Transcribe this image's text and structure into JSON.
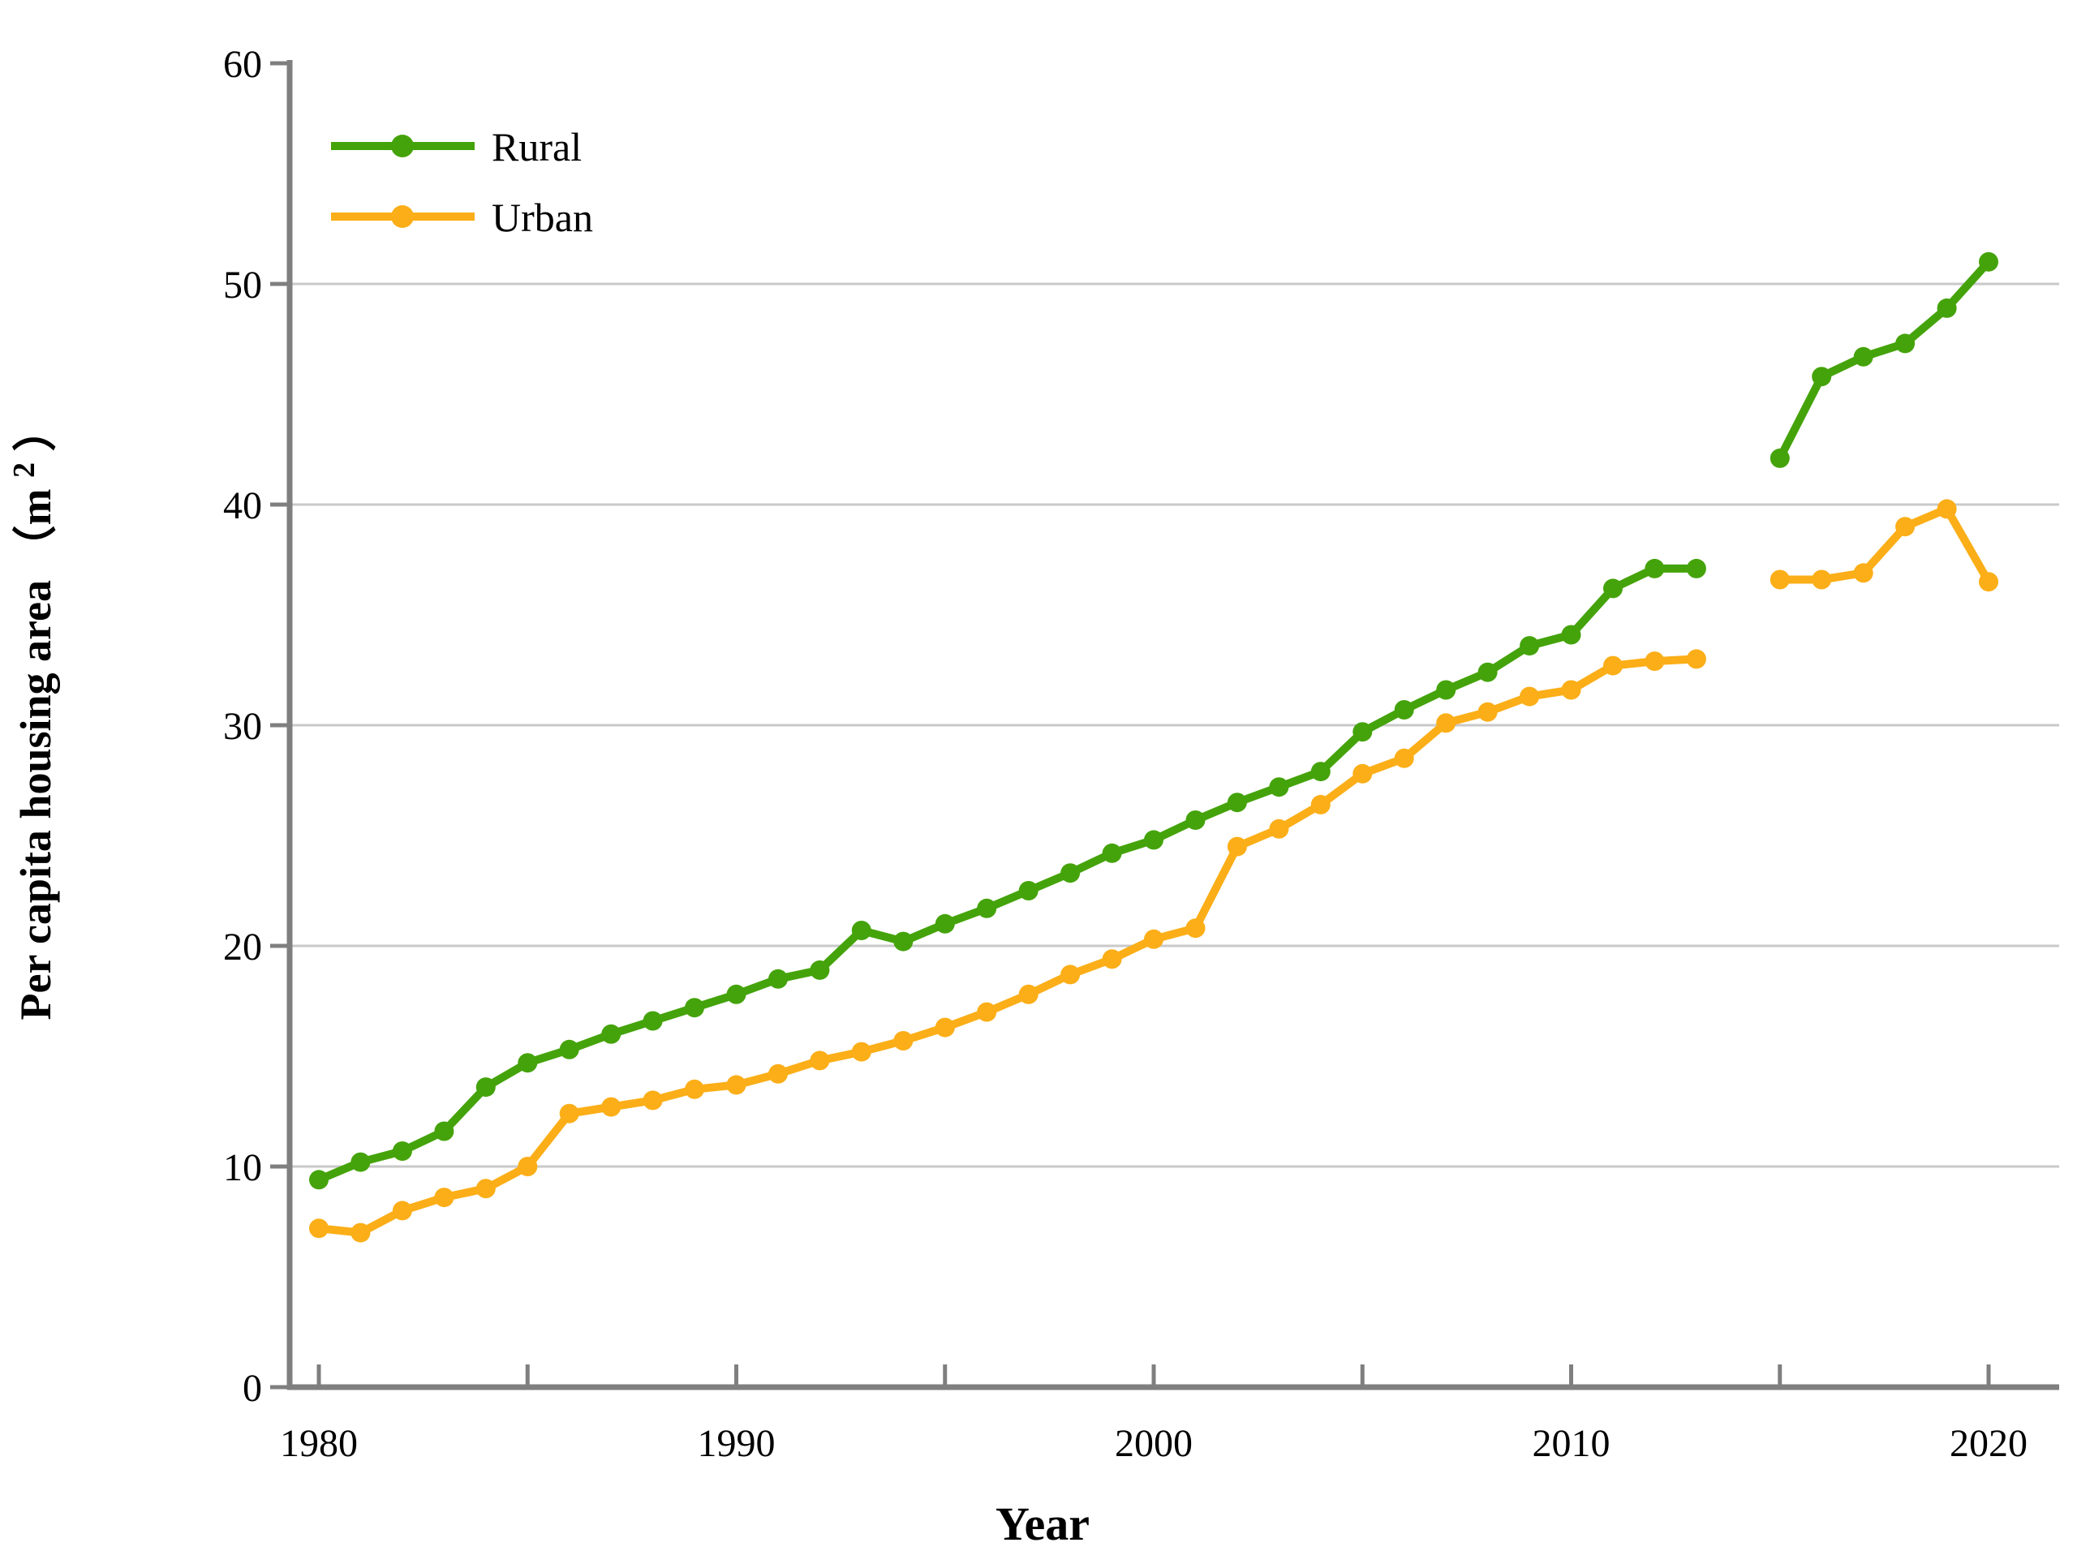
{
  "chart_data": {
    "type": "line",
    "title": "",
    "xlabel": "Year",
    "ylabel": "Per capita housing area （m2）",
    "ylabel_parts": {
      "main": "Per capita housing area （m",
      "sup": "2",
      "close": "）"
    },
    "xlim": [
      1979.3,
      2022
    ],
    "ylim": [
      0,
      60
    ],
    "y_ticks": [
      0,
      10,
      20,
      30,
      40,
      50,
      60
    ],
    "y_gridlines": [
      10,
      20,
      30,
      40,
      50
    ],
    "x_ticks_minor": [
      1980,
      1985,
      1990,
      1995,
      2000,
      2005,
      2010,
      2015,
      2020
    ],
    "x_tick_labels": [
      1980,
      1990,
      2000,
      2010,
      2020
    ],
    "grid": "horizontal",
    "legend_position": "upper-left-inside",
    "gap_note": "no data for 2014; lines broken between 2013 and 2015",
    "colors": {
      "rural": "#44a30a",
      "urban": "#fbae17",
      "axis": "#7f7f7f",
      "grid": "#c9c9c9",
      "text": "#000000"
    },
    "series": [
      {
        "name": "Rural",
        "color": "#44a30a",
        "points": [
          [
            1980,
            9.4
          ],
          [
            1981,
            10.2
          ],
          [
            1982,
            10.7
          ],
          [
            1983,
            11.6
          ],
          [
            1984,
            13.6
          ],
          [
            1985,
            14.7
          ],
          [
            1986,
            15.3
          ],
          [
            1987,
            16.0
          ],
          [
            1988,
            16.6
          ],
          [
            1989,
            17.2
          ],
          [
            1990,
            17.8
          ],
          [
            1991,
            18.5
          ],
          [
            1992,
            18.9
          ],
          [
            1993,
            20.7
          ],
          [
            1994,
            20.2
          ],
          [
            1995,
            21.0
          ],
          [
            1996,
            21.7
          ],
          [
            1997,
            22.5
          ],
          [
            1998,
            23.3
          ],
          [
            1999,
            24.2
          ],
          [
            2000,
            24.8
          ],
          [
            2001,
            25.7
          ],
          [
            2002,
            26.5
          ],
          [
            2003,
            27.2
          ],
          [
            2004,
            27.9
          ],
          [
            2005,
            29.7
          ],
          [
            2006,
            30.7
          ],
          [
            2007,
            31.6
          ],
          [
            2008,
            32.4
          ],
          [
            2009,
            33.6
          ],
          [
            2010,
            34.1
          ],
          [
            2011,
            36.2
          ],
          [
            2012,
            37.1
          ],
          [
            2013,
            37.1
          ],
          [
            2015,
            42.1
          ],
          [
            2016,
            45.8
          ],
          [
            2017,
            46.7
          ],
          [
            2018,
            47.3
          ],
          [
            2019,
            48.9
          ],
          [
            2020,
            51.0
          ]
        ]
      },
      {
        "name": "Urban",
        "color": "#fbae17",
        "points": [
          [
            1980,
            7.2
          ],
          [
            1981,
            7.0
          ],
          [
            1982,
            8.0
          ],
          [
            1983,
            8.6
          ],
          [
            1984,
            9.0
          ],
          [
            1985,
            10.0
          ],
          [
            1986,
            12.4
          ],
          [
            1987,
            12.7
          ],
          [
            1988,
            13.0
          ],
          [
            1989,
            13.5
          ],
          [
            1990,
            13.7
          ],
          [
            1991,
            14.2
          ],
          [
            1992,
            14.8
          ],
          [
            1993,
            15.2
          ],
          [
            1994,
            15.7
          ],
          [
            1995,
            16.3
          ],
          [
            1996,
            17.0
          ],
          [
            1997,
            17.8
          ],
          [
            1998,
            18.7
          ],
          [
            1999,
            19.4
          ],
          [
            2000,
            20.3
          ],
          [
            2001,
            20.8
          ],
          [
            2002,
            24.5
          ],
          [
            2003,
            25.3
          ],
          [
            2004,
            26.4
          ],
          [
            2005,
            27.8
          ],
          [
            2006,
            28.5
          ],
          [
            2007,
            30.1
          ],
          [
            2008,
            30.6
          ],
          [
            2009,
            31.3
          ],
          [
            2010,
            31.6
          ],
          [
            2011,
            32.7
          ],
          [
            2012,
            32.9
          ],
          [
            2013,
            33.0
          ],
          [
            2015,
            36.6
          ],
          [
            2016,
            36.6
          ],
          [
            2017,
            36.9
          ],
          [
            2018,
            39.0
          ],
          [
            2019,
            39.8
          ],
          [
            2020,
            36.5
          ]
        ]
      }
    ]
  }
}
